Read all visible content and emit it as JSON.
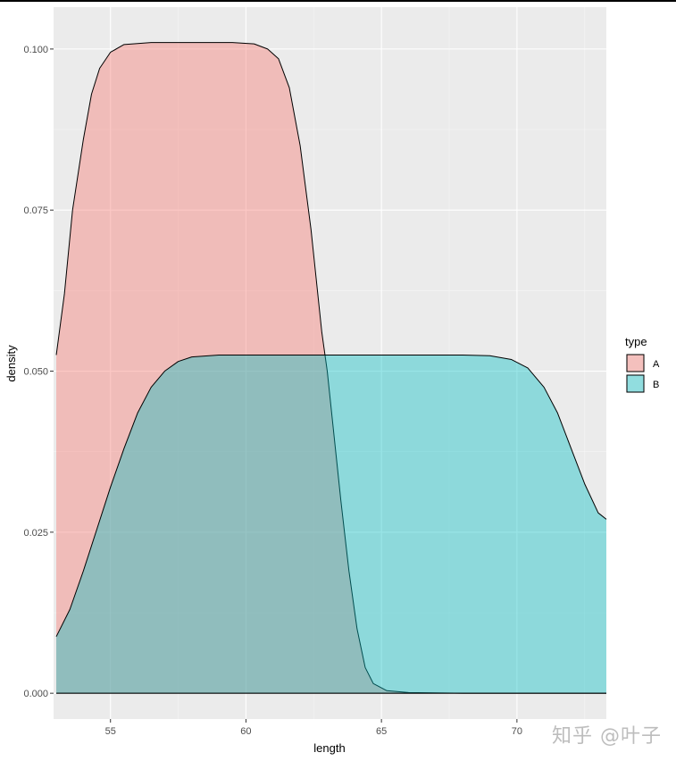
{
  "chart_data": {
    "type": "area",
    "chart_kind": "density",
    "xlabel": "length",
    "ylabel": "density",
    "xlim": [
      52.9,
      73.3
    ],
    "ylim": [
      -0.004,
      0.1065
    ],
    "x_ticks": [
      55,
      60,
      65,
      70
    ],
    "x_minor_ticks": [
      52.5,
      57.5,
      62.5,
      67.5,
      72.5
    ],
    "y_ticks": [
      0.0,
      0.025,
      0.05,
      0.075,
      0.1
    ],
    "y_tick_labels": [
      "0.000",
      "0.025",
      "0.050",
      "0.075",
      "0.100"
    ],
    "grid": true,
    "legend": {
      "title": "type",
      "position": "right"
    },
    "series": [
      {
        "name": "A",
        "fill": "#F8766D",
        "fill_opacity": 0.4,
        "points": [
          [
            53.0,
            0.0525
          ],
          [
            53.3,
            0.062
          ],
          [
            53.6,
            0.075
          ],
          [
            54.0,
            0.086
          ],
          [
            54.3,
            0.093
          ],
          [
            54.6,
            0.097
          ],
          [
            55.0,
            0.0995
          ],
          [
            55.5,
            0.1007
          ],
          [
            56.5,
            0.101
          ],
          [
            58.0,
            0.101
          ],
          [
            59.5,
            0.101
          ],
          [
            60.3,
            0.1008
          ],
          [
            60.8,
            0.1
          ],
          [
            61.2,
            0.0985
          ],
          [
            61.6,
            0.094
          ],
          [
            62.0,
            0.085
          ],
          [
            62.4,
            0.072
          ],
          [
            62.8,
            0.056
          ],
          [
            63.0,
            0.05
          ],
          [
            63.2,
            0.042
          ],
          [
            63.5,
            0.03
          ],
          [
            63.8,
            0.019
          ],
          [
            64.1,
            0.01
          ],
          [
            64.4,
            0.004
          ],
          [
            64.7,
            0.0015
          ],
          [
            65.2,
            0.0004
          ],
          [
            66.0,
            0.0001
          ],
          [
            68.0,
            0.0
          ],
          [
            70.0,
            0.0
          ],
          [
            72.0,
            0.0
          ],
          [
            73.3,
            0.0
          ]
        ]
      },
      {
        "name": "B",
        "fill": "#00BFC4",
        "fill_opacity": 0.4,
        "points": [
          [
            53.0,
            0.0088
          ],
          [
            53.5,
            0.013
          ],
          [
            54.0,
            0.019
          ],
          [
            54.5,
            0.0255
          ],
          [
            55.0,
            0.032
          ],
          [
            55.5,
            0.038
          ],
          [
            56.0,
            0.0435
          ],
          [
            56.5,
            0.0475
          ],
          [
            57.0,
            0.05
          ],
          [
            57.5,
            0.0515
          ],
          [
            58.0,
            0.0522
          ],
          [
            59.0,
            0.0525
          ],
          [
            60.0,
            0.0525
          ],
          [
            62.0,
            0.0525
          ],
          [
            64.0,
            0.0525
          ],
          [
            66.0,
            0.0525
          ],
          [
            68.0,
            0.0525
          ],
          [
            69.0,
            0.0524
          ],
          [
            69.8,
            0.0518
          ],
          [
            70.4,
            0.0505
          ],
          [
            71.0,
            0.0475
          ],
          [
            71.5,
            0.0435
          ],
          [
            72.0,
            0.038
          ],
          [
            72.5,
            0.0325
          ],
          [
            73.0,
            0.028
          ],
          [
            73.3,
            0.027
          ]
        ]
      }
    ]
  },
  "watermark": "知乎 @叶子"
}
